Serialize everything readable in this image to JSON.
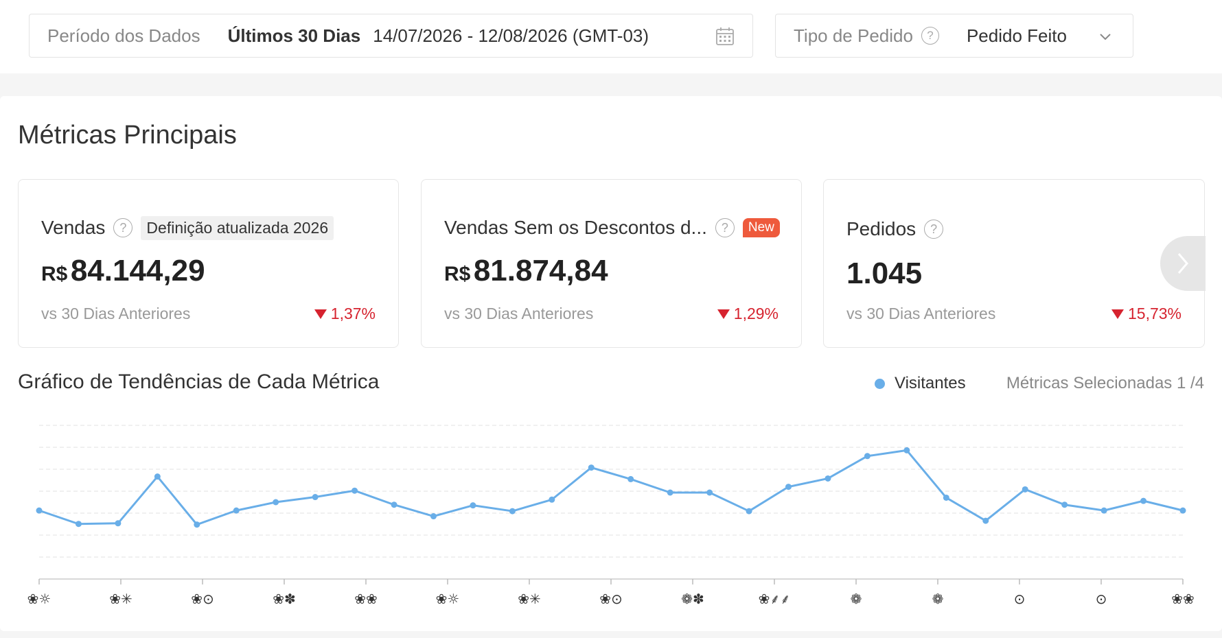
{
  "filters": {
    "period_label": "Período dos Dados",
    "period_value": "Últimos 30 Dias",
    "period_range": "14/07/2026 - 12/08/2026 (GMT-03)",
    "order_type_label": "Tipo de Pedido",
    "order_type_value": "Pedido Feito"
  },
  "section_title": "Métricas Principais",
  "cards": [
    {
      "title": "Vendas",
      "tag": "Definição atualizada 2026",
      "currency": "R$",
      "value": "84.144,29",
      "compare": "vs 30 Dias Anteriores",
      "delta": "1,37%"
    },
    {
      "title": "Vendas Sem os Descontos d...",
      "tag": "New",
      "currency": "R$",
      "value": "81.874,84",
      "compare": "vs 30 Dias Anteriores",
      "delta": "1,29%"
    },
    {
      "title": "Pedidos",
      "value": "1.045",
      "compare": "vs 30 Dias Anteriores",
      "delta": "15,73%"
    }
  ],
  "trend": {
    "title": "Gráfico de Tendências de Cada Métrica",
    "legend": "Visitantes",
    "selected": "Métricas Selecionadas 1 /4"
  },
  "colors": {
    "accent_line": "#69aee8",
    "down": "#d6232f",
    "new_badge": "#ee5a3c"
  },
  "chart_data": {
    "type": "line",
    "series": [
      {
        "name": "Visitantes",
        "values": [
          107,
          86,
          87,
          160,
          85,
          107,
          120,
          128,
          138,
          116,
          98,
          115,
          106,
          124,
          174,
          156,
          135,
          135,
          106,
          144,
          157,
          192,
          201,
          127,
          91,
          140,
          116,
          107,
          122,
          107
        ]
      }
    ],
    "ylim": [
      0,
      240
    ],
    "grid": true,
    "x_tick_labels": [
      "❀☼",
      "❀✳",
      "❀⊙",
      "❀✽",
      "❀❀",
      "❀☼",
      "❀✳",
      "❀⊙",
      "❁✽",
      "❀⸙⸙",
      "❁",
      "❁",
      "⊙",
      "⊙",
      "❀❀"
    ]
  }
}
